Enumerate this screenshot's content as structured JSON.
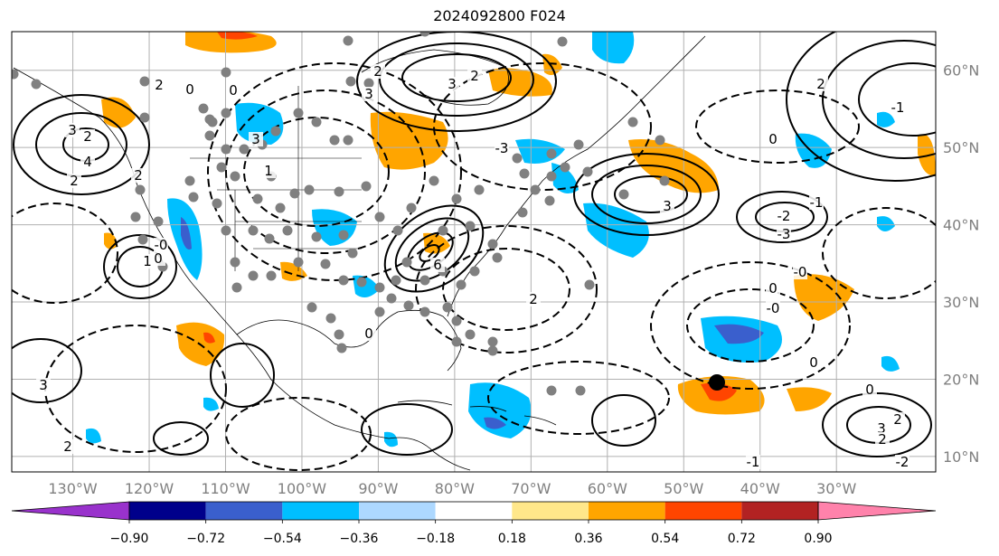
{
  "title": "2024092800 F024",
  "map": {
    "lon_range": [
      -138,
      -17
    ],
    "lat_range": [
      8,
      65
    ],
    "lon_ticks": [
      -130,
      -120,
      -110,
      -100,
      -90,
      -80,
      -70,
      -60,
      -50,
      -40,
      -30
    ],
    "lon_tick_labels": [
      "130°W",
      "120°W",
      "110°W",
      "100°W",
      "90°W",
      "80°W",
      "70°W",
      "60°W",
      "50°W",
      "40°W",
      "30°W"
    ],
    "lat_ticks": [
      10,
      20,
      30,
      40,
      50,
      60
    ],
    "lat_tick_labels": [
      "10°N",
      "20°N",
      "30°N",
      "40°N",
      "50°N",
      "60°N"
    ],
    "grid": true,
    "tick_label_color": "#7f7f7f",
    "contour_label_values": [
      "2",
      "4",
      "3",
      "2",
      "0",
      "2",
      "2",
      "3",
      "1",
      "0",
      "3",
      "6",
      "2",
      "3",
      "2",
      "3",
      "-2",
      "-3",
      "-1",
      "-1",
      "2",
      "1",
      "0",
      "-0",
      "0",
      "2",
      "3",
      "2",
      "0",
      "-0",
      "0",
      "3",
      "2",
      "2",
      "0",
      "-3",
      "-1",
      "-2",
      "-0",
      "0"
    ]
  },
  "colorbar": {
    "levels": [
      "−0.90",
      "−0.72",
      "−0.54",
      "−0.36",
      "−0.18",
      "0.18",
      "0.36",
      "0.54",
      "0.72",
      "0.90"
    ],
    "colors": [
      "#9932cc",
      "#00008b",
      "#3a5fcd",
      "#00bfff",
      "#add8ff",
      "#ffffff",
      "#ffe78a",
      "#ffa500",
      "#ff4500",
      "#b22222",
      "#ff82ab"
    ],
    "extend": "both"
  }
}
